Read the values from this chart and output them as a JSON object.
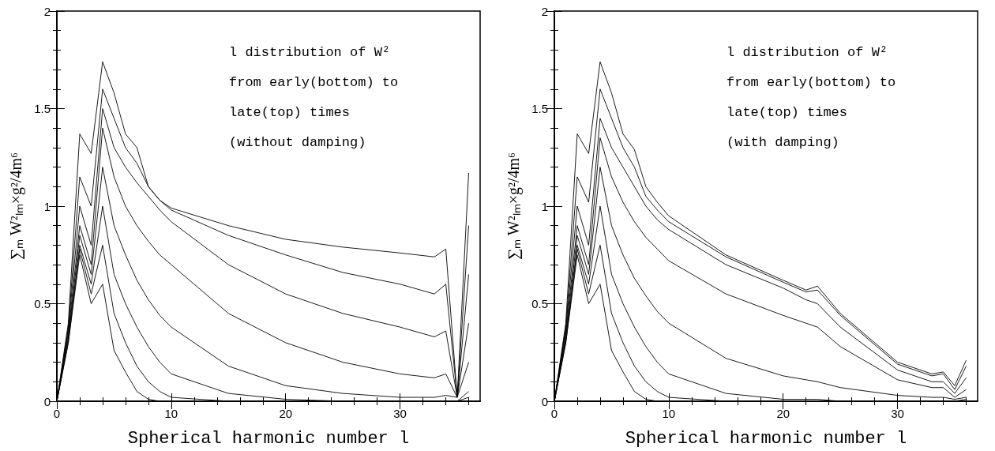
{
  "chart_data": [
    {
      "type": "line",
      "xlabel": "Spherical harmonic number l",
      "ylabel": "∑ₘ W²ₗₘ×g²/4m⁶",
      "annotations": [
        "l distribution of W²",
        "from early(bottom) to",
        "late(top) times",
        "(without damping)"
      ],
      "xlim": [
        0,
        37
      ],
      "xticks": [
        0,
        10,
        20,
        30
      ],
      "ylim": [
        0,
        2
      ],
      "yticks": [
        0,
        0.5,
        1,
        1.5,
        2
      ],
      "x": [
        0,
        1,
        2,
        3,
        4,
        5,
        6,
        7,
        8,
        9,
        10,
        15,
        20,
        25,
        30,
        33,
        34,
        35,
        36
      ],
      "series": [
        {
          "color": "#000000",
          "values": [
            0,
            0.3,
            0.75,
            0.5,
            0.6,
            0.26,
            0.15,
            0.05,
            0.01,
            0,
            0,
            0,
            0,
            0,
            0,
            0,
            0,
            0,
            0
          ]
        },
        {
          "color": "#000000",
          "values": [
            0,
            0.3,
            0.78,
            0.55,
            0.8,
            0.45,
            0.3,
            0.18,
            0.1,
            0.05,
            0.02,
            0,
            0,
            0,
            0,
            0,
            0,
            0,
            0.02
          ]
        },
        {
          "color": "#000000",
          "values": [
            0,
            0.32,
            0.8,
            0.6,
            1.0,
            0.65,
            0.5,
            0.38,
            0.28,
            0.2,
            0.14,
            0.04,
            0.01,
            0,
            0,
            0,
            0,
            0,
            0.05
          ]
        },
        {
          "color": "#000000",
          "values": [
            0,
            0.33,
            0.85,
            0.65,
            1.2,
            0.9,
            0.75,
            0.62,
            0.52,
            0.44,
            0.38,
            0.18,
            0.08,
            0.04,
            0.02,
            0.02,
            0.03,
            0.02,
            0.2
          ]
        },
        {
          "color": "#000000",
          "values": [
            0,
            0.35,
            0.9,
            0.7,
            1.4,
            1.15,
            1.0,
            0.9,
            0.82,
            0.75,
            0.7,
            0.45,
            0.3,
            0.2,
            0.14,
            0.12,
            0.14,
            0.02,
            0.4
          ]
        },
        {
          "color": "#000000",
          "values": [
            0,
            0.37,
            1.0,
            0.8,
            1.5,
            1.3,
            1.2,
            1.12,
            1.05,
            0.98,
            0.92,
            0.7,
            0.55,
            0.45,
            0.38,
            0.33,
            0.36,
            0.02,
            0.65
          ]
        },
        {
          "color": "#000000",
          "values": [
            0,
            0.38,
            1.15,
            1.0,
            1.6,
            1.45,
            1.3,
            1.22,
            1.1,
            1.03,
            0.98,
            0.85,
            0.75,
            0.66,
            0.6,
            0.55,
            0.6,
            0.02,
            0.9
          ]
        },
        {
          "color": "#000000",
          "values": [
            0,
            0.4,
            1.37,
            1.27,
            1.74,
            1.58,
            1.37,
            1.3,
            1.1,
            1.03,
            0.99,
            0.9,
            0.83,
            0.79,
            0.76,
            0.74,
            0.78,
            0.02,
            1.17
          ]
        }
      ]
    },
    {
      "type": "line",
      "xlabel": "Spherical harmonic number l",
      "ylabel": "∑ₘ W²ₗₘ×g²/4m⁶",
      "annotations": [
        "l distribution of W²",
        "from early(bottom) to",
        "late(top) times",
        "(with damping)"
      ],
      "xlim": [
        0,
        37
      ],
      "xticks": [
        0,
        10,
        20,
        30
      ],
      "ylim": [
        0,
        2
      ],
      "yticks": [
        0,
        0.5,
        1,
        1.5,
        2
      ],
      "x": [
        0,
        1,
        2,
        3,
        4,
        5,
        6,
        7,
        8,
        9,
        10,
        15,
        20,
        22,
        23,
        25,
        30,
        33,
        34,
        35,
        36
      ],
      "series": [
        {
          "color": "#000000",
          "values": [
            0,
            0.3,
            0.75,
            0.5,
            0.6,
            0.26,
            0.15,
            0.05,
            0.01,
            0,
            0,
            0,
            0,
            0,
            0,
            0,
            0,
            0,
            0,
            0,
            0
          ]
        },
        {
          "color": "#000000",
          "values": [
            0,
            0.3,
            0.78,
            0.55,
            0.8,
            0.45,
            0.3,
            0.18,
            0.1,
            0.05,
            0.02,
            0,
            0,
            0,
            0,
            0,
            0,
            0,
            0,
            0,
            0
          ]
        },
        {
          "color": "#000000",
          "values": [
            0,
            0.32,
            0.8,
            0.6,
            1.0,
            0.65,
            0.5,
            0.38,
            0.28,
            0.2,
            0.14,
            0.04,
            0.01,
            0.01,
            0.01,
            0,
            0,
            0,
            0,
            0,
            0.01
          ]
        },
        {
          "color": "#000000",
          "values": [
            0,
            0.33,
            0.85,
            0.65,
            1.2,
            0.9,
            0.75,
            0.63,
            0.54,
            0.46,
            0.4,
            0.22,
            0.13,
            0.11,
            0.1,
            0.07,
            0.03,
            0.02,
            0.02,
            0.01,
            0.02
          ]
        },
        {
          "color": "#000000",
          "values": [
            0,
            0.35,
            0.9,
            0.7,
            1.35,
            1.15,
            1.02,
            0.92,
            0.84,
            0.78,
            0.72,
            0.55,
            0.44,
            0.4,
            0.38,
            0.28,
            0.11,
            0.07,
            0.07,
            0.02,
            0.06
          ]
        },
        {
          "color": "#000000",
          "values": [
            0,
            0.37,
            1.0,
            0.8,
            1.45,
            1.3,
            1.2,
            1.1,
            1.0,
            0.93,
            0.88,
            0.7,
            0.58,
            0.52,
            0.5,
            0.38,
            0.16,
            0.1,
            0.1,
            0.04,
            0.12
          ]
        },
        {
          "color": "#000000",
          "values": [
            0,
            0.38,
            1.15,
            1.02,
            1.6,
            1.45,
            1.3,
            1.2,
            1.05,
            0.98,
            0.92,
            0.74,
            0.61,
            0.56,
            0.57,
            0.44,
            0.19,
            0.13,
            0.14,
            0.06,
            0.18
          ]
        },
        {
          "color": "#000000",
          "values": [
            0,
            0.4,
            1.37,
            1.27,
            1.74,
            1.58,
            1.37,
            1.29,
            1.1,
            1.02,
            0.95,
            0.75,
            0.62,
            0.57,
            0.59,
            0.45,
            0.2,
            0.14,
            0.15,
            0.08,
            0.21
          ]
        }
      ]
    }
  ]
}
